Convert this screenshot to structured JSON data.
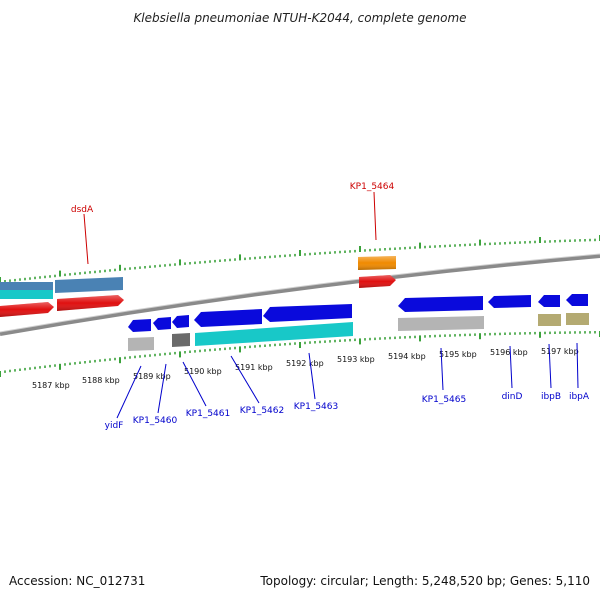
{
  "title": "Klebsiella pneumoniae NTUH-K2044, complete genome",
  "footer": {
    "accession": "Accession: NC_012731",
    "summary": "Topology: circular; Length: 5,248,520 bp; Genes: 5,110"
  },
  "colors": {
    "blue_gene": "#0a0adc",
    "cyan_gene": "#18c8c8",
    "steel_gene": "#4a82b4",
    "red_gene": "#e01010",
    "orange_gene": "#f08a00",
    "gray_gene": "#b4b4b4",
    "dark_gray_gene": "#6a6a6a",
    "khaki_gene": "#b4aa72",
    "tick": "#0a8a0a",
    "label_blue": "#0000cc",
    "label_red": "#cc0000"
  },
  "scale_labels": [
    "5187 kbp",
    "5188 kbp",
    "5189 kbp",
    "5190 kbp",
    "5191 kbp",
    "5192 kbp",
    "5193 kbp",
    "5194 kbp",
    "5195 kbp",
    "5196 kbp",
    "5197 kbp"
  ],
  "labels_top": [
    "dsdA",
    "KP1_5464"
  ],
  "labels_bottom": [
    "yidF",
    "KP1_5460",
    "KP1_5461",
    "KP1_5462",
    "KP1_5463",
    "KP1_5465",
    "dinD",
    "ibpB",
    "ibpA"
  ]
}
